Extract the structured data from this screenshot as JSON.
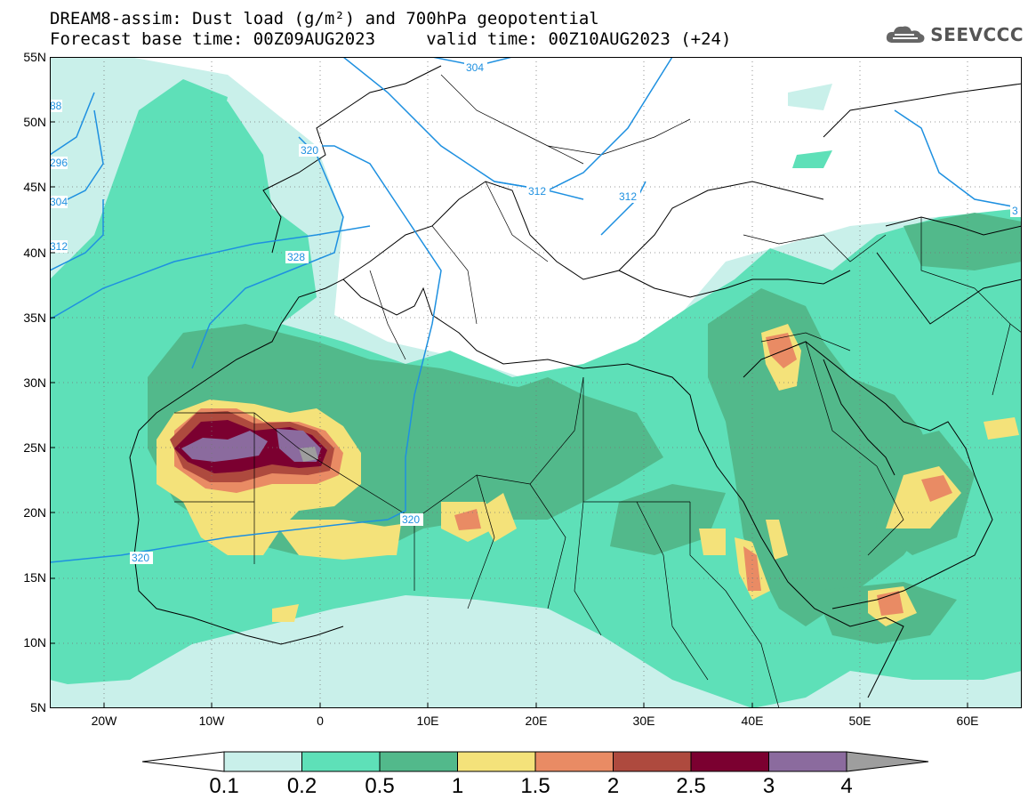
{
  "header": {
    "title_line1": "DREAM8-assim: Dust load (g/m²) and 700hPa geopotential",
    "title_line2": "Forecast base time: 00Z09AUG2023     valid time: 00Z10AUG2023 (+24)",
    "logo_text": "SEEVCCC"
  },
  "map": {
    "lat_range": [
      5,
      55
    ],
    "lon_range": [
      -25,
      65
    ],
    "lat_labels": [
      "55N",
      "50N",
      "45N",
      "40N",
      "35N",
      "30N",
      "25N",
      "20N",
      "15N",
      "10N",
      "5N"
    ],
    "lon_labels": [
      "20W",
      "10W",
      "0",
      "10E",
      "20E",
      "30E",
      "40E",
      "50E",
      "60E"
    ],
    "contour_labels": [
      "320",
      "328",
      "320",
      "320",
      "312",
      "312",
      "304",
      "296",
      "304",
      "312",
      "3",
      "88"
    ]
  },
  "colorbar": {
    "levels": [
      "0.1",
      "0.2",
      "0.5",
      "1",
      "1.5",
      "2",
      "2.5",
      "3",
      "4"
    ],
    "colors": [
      "#c9f0ea",
      "#5ee0b8",
      "#52b98b",
      "#f4e27a",
      "#e98b64",
      "#ae4a3e",
      "#7b0030",
      "#8b6b9e",
      "#9e9e9e"
    ]
  }
}
